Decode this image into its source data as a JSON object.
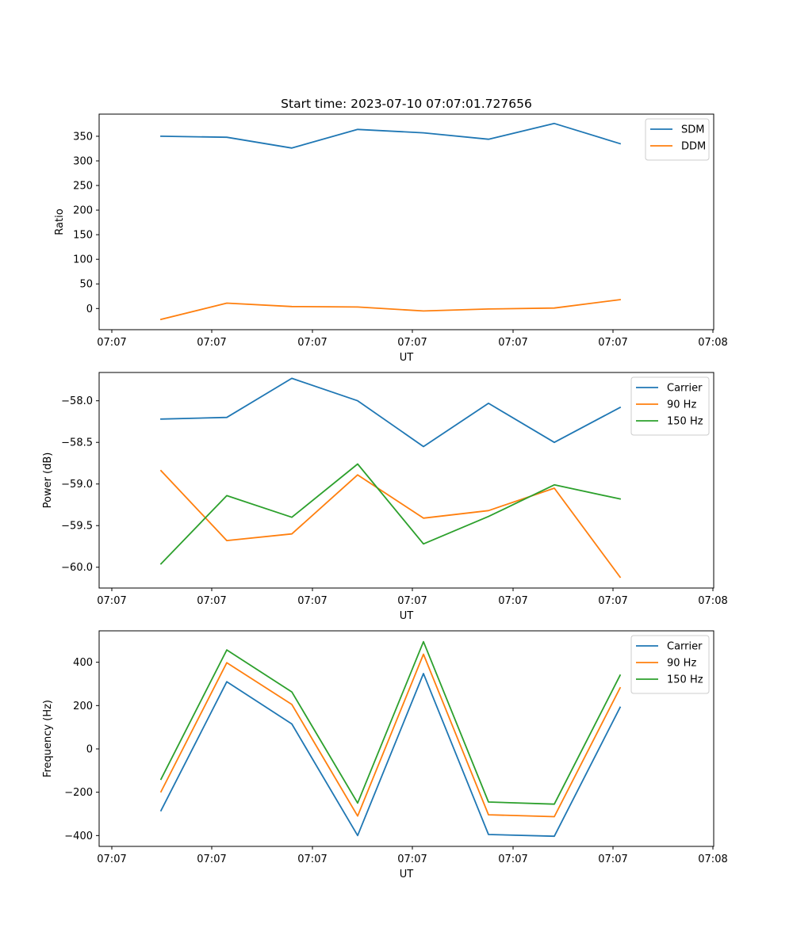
{
  "chart_data": [
    {
      "type": "line",
      "title": "Start time: 2023-07-10 07:07:01.727656",
      "xlabel": "UT",
      "ylabel": "Ratio",
      "x_ticks": [
        "07:07",
        "07:07",
        "07:07",
        "07:07",
        "07:07",
        "07:07",
        "07:08"
      ],
      "y_ticks": [
        0,
        50,
        100,
        150,
        200,
        250,
        300,
        350
      ],
      "ylim": [
        -43,
        395
      ],
      "legend_position": "top-right",
      "series": [
        {
          "name": "SDM",
          "color": "#1f77b4",
          "values": [
            350,
            348,
            326,
            364,
            357,
            344,
            376,
            335
          ]
        },
        {
          "name": "DDM",
          "color": "#ff7f0e",
          "values": [
            -22,
            11,
            4,
            3,
            -5,
            -1,
            1,
            18
          ]
        }
      ]
    },
    {
      "type": "line",
      "title": "",
      "xlabel": "UT",
      "ylabel": "Power (dB)",
      "x_ticks": [
        "07:07",
        "07:07",
        "07:07",
        "07:07",
        "07:07",
        "07:07",
        "07:08"
      ],
      "y_ticks": [
        "−58.0",
        "−58.5",
        "−59.0",
        "−59.5",
        "−60.0"
      ],
      "y_tick_values": [
        -58.0,
        -58.5,
        -59.0,
        -59.5,
        -60.0
      ],
      "ylim": [
        -60.25,
        -57.66
      ],
      "legend_position": "top-right",
      "series": [
        {
          "name": "Carrier",
          "color": "#1f77b4",
          "values": [
            -58.22,
            -58.2,
            -57.73,
            -58.0,
            -58.55,
            -58.03,
            -58.5,
            -58.08
          ]
        },
        {
          "name": "90 Hz",
          "color": "#ff7f0e",
          "values": [
            -58.84,
            -59.68,
            -59.6,
            -58.89,
            -59.41,
            -59.32,
            -59.05,
            -60.12
          ]
        },
        {
          "name": "150 Hz",
          "color": "#2ca02c",
          "values": [
            -59.96,
            -59.14,
            -59.4,
            -58.76,
            -59.72,
            -59.39,
            -59.01,
            -59.18
          ]
        }
      ]
    },
    {
      "type": "line",
      "title": "",
      "xlabel": "UT",
      "ylabel": "Frequency (Hz)",
      "x_ticks": [
        "07:07",
        "07:07",
        "07:07",
        "07:07",
        "07:07",
        "07:07",
        "07:08"
      ],
      "y_ticks": [
        "−400",
        "−200",
        "0",
        "200",
        "400"
      ],
      "y_tick_values": [
        -400,
        -200,
        0,
        200,
        400
      ],
      "ylim": [
        -450,
        545
      ],
      "legend_position": "top-right",
      "series": [
        {
          "name": "Carrier",
          "color": "#1f77b4",
          "values": [
            -285,
            310,
            115,
            -400,
            348,
            -395,
            -403,
            192
          ]
        },
        {
          "name": "90 Hz",
          "color": "#ff7f0e",
          "values": [
            -198,
            398,
            205,
            -310,
            437,
            -304,
            -313,
            282
          ]
        },
        {
          "name": "150 Hz",
          "color": "#2ca02c",
          "values": [
            -140,
            457,
            263,
            -250,
            495,
            -245,
            -255,
            340
          ]
        }
      ]
    }
  ]
}
